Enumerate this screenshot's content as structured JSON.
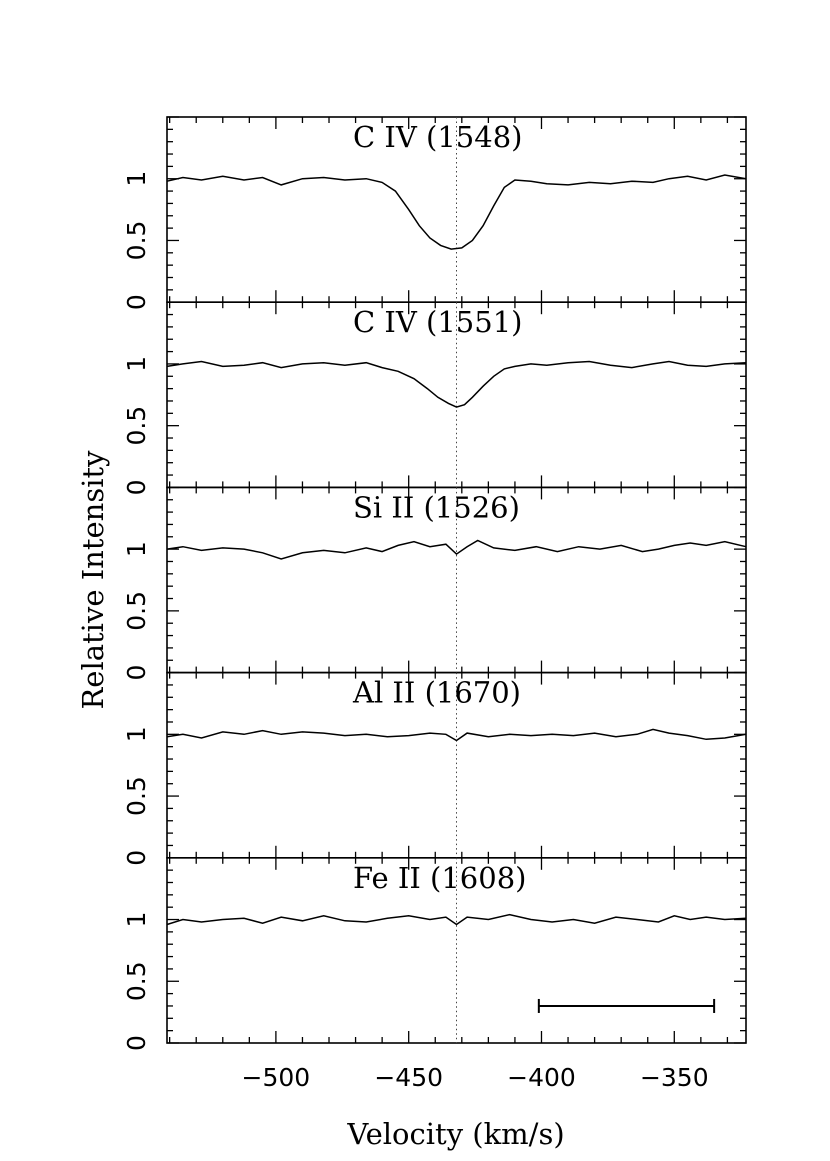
{
  "chart_data": {
    "type": "line",
    "xlabel": "Velocity (km/s)",
    "ylabel": "Relative Intensity",
    "xlim": [
      -541,
      -323
    ],
    "x_ticks": [
      -500,
      -450,
      -400,
      -350
    ],
    "x_tick_labels": [
      "−500",
      "−450",
      "−400",
      "−350"
    ],
    "x_minor_step": 10,
    "ylim": [
      0,
      1.5
    ],
    "y_ticks": [
      0,
      0.5,
      1
    ],
    "y_tick_labels": [
      "0",
      "0.5",
      "1"
    ],
    "y_minor_step": 0.1,
    "reference_velocity": -432,
    "scale_bar": {
      "x_start": -401,
      "x_end": -335,
      "y": 0.3
    },
    "panels": [
      {
        "name": "C IV (1548)",
        "profile": [
          [
            -541,
            0.98
          ],
          [
            -535,
            1.01
          ],
          [
            -528,
            0.99
          ],
          [
            -520,
            1.02
          ],
          [
            -512,
            0.99
          ],
          [
            -505,
            1.01
          ],
          [
            -498,
            0.95
          ],
          [
            -490,
            1.0
          ],
          [
            -482,
            1.01
          ],
          [
            -474,
            0.99
          ],
          [
            -466,
            1.0
          ],
          [
            -460,
            0.97
          ],
          [
            -455,
            0.9
          ],
          [
            -450,
            0.75
          ],
          [
            -446,
            0.62
          ],
          [
            -442,
            0.52
          ],
          [
            -438,
            0.46
          ],
          [
            -434,
            0.43
          ],
          [
            -430,
            0.44
          ],
          [
            -426,
            0.5
          ],
          [
            -422,
            0.62
          ],
          [
            -418,
            0.78
          ],
          [
            -414,
            0.93
          ],
          [
            -410,
            0.99
          ],
          [
            -404,
            0.98
          ],
          [
            -398,
            0.96
          ],
          [
            -390,
            0.95
          ],
          [
            -382,
            0.97
          ],
          [
            -374,
            0.96
          ],
          [
            -366,
            0.98
          ],
          [
            -358,
            0.97
          ],
          [
            -352,
            1.0
          ],
          [
            -345,
            1.02
          ],
          [
            -338,
            0.99
          ],
          [
            -331,
            1.03
          ],
          [
            -323,
            1.0
          ]
        ]
      },
      {
        "name": "C IV (1551)",
        "profile": [
          [
            -541,
            0.98
          ],
          [
            -535,
            1.0
          ],
          [
            -528,
            1.02
          ],
          [
            -520,
            0.98
          ],
          [
            -512,
            0.99
          ],
          [
            -505,
            1.01
          ],
          [
            -498,
            0.97
          ],
          [
            -490,
            1.0
          ],
          [
            -482,
            1.01
          ],
          [
            -474,
            0.99
          ],
          [
            -466,
            1.01
          ],
          [
            -460,
            0.97
          ],
          [
            -454,
            0.94
          ],
          [
            -448,
            0.88
          ],
          [
            -443,
            0.8
          ],
          [
            -439,
            0.73
          ],
          [
            -435,
            0.68
          ],
          [
            -432,
            0.65
          ],
          [
            -429,
            0.67
          ],
          [
            -426,
            0.73
          ],
          [
            -422,
            0.82
          ],
          [
            -418,
            0.9
          ],
          [
            -414,
            0.96
          ],
          [
            -410,
            0.98
          ],
          [
            -404,
            1.0
          ],
          [
            -398,
            0.99
          ],
          [
            -390,
            1.01
          ],
          [
            -382,
            1.02
          ],
          [
            -374,
            0.99
          ],
          [
            -366,
            0.97
          ],
          [
            -358,
            1.0
          ],
          [
            -352,
            1.02
          ],
          [
            -345,
            0.99
          ],
          [
            -338,
            0.98
          ],
          [
            -331,
            1.0
          ],
          [
            -323,
            1.01
          ]
        ]
      },
      {
        "name": "Si II (1526)",
        "profile": [
          [
            -541,
            1.0
          ],
          [
            -535,
            1.02
          ],
          [
            -528,
            0.99
          ],
          [
            -520,
            1.01
          ],
          [
            -512,
            1.0
          ],
          [
            -505,
            0.97
          ],
          [
            -498,
            0.92
          ],
          [
            -490,
            0.97
          ],
          [
            -482,
            0.99
          ],
          [
            -474,
            0.97
          ],
          [
            -466,
            1.01
          ],
          [
            -460,
            0.98
          ],
          [
            -454,
            1.03
          ],
          [
            -448,
            1.06
          ],
          [
            -442,
            1.02
          ],
          [
            -436,
            1.04
          ],
          [
            -432,
            0.96
          ],
          [
            -428,
            1.02
          ],
          [
            -424,
            1.07
          ],
          [
            -418,
            1.01
          ],
          [
            -410,
            0.99
          ],
          [
            -402,
            1.02
          ],
          [
            -394,
            0.98
          ],
          [
            -386,
            1.02
          ],
          [
            -378,
            1.0
          ],
          [
            -370,
            1.03
          ],
          [
            -362,
            0.98
          ],
          [
            -356,
            1.0
          ],
          [
            -350,
            1.03
          ],
          [
            -344,
            1.05
          ],
          [
            -338,
            1.03
          ],
          [
            -331,
            1.06
          ],
          [
            -323,
            1.02
          ]
        ]
      },
      {
        "name": "Al II (1670)",
        "profile": [
          [
            -541,
            0.98
          ],
          [
            -535,
            1.0
          ],
          [
            -528,
            0.97
          ],
          [
            -520,
            1.02
          ],
          [
            -512,
            1.0
          ],
          [
            -505,
            1.03
          ],
          [
            -498,
            1.0
          ],
          [
            -490,
            1.02
          ],
          [
            -482,
            1.01
          ],
          [
            -474,
            0.99
          ],
          [
            -466,
            1.0
          ],
          [
            -458,
            0.98
          ],
          [
            -450,
            0.99
          ],
          [
            -442,
            1.01
          ],
          [
            -436,
            1.0
          ],
          [
            -432,
            0.95
          ],
          [
            -428,
            1.01
          ],
          [
            -420,
            0.98
          ],
          [
            -412,
            1.0
          ],
          [
            -404,
            0.99
          ],
          [
            -396,
            1.0
          ],
          [
            -388,
            0.99
          ],
          [
            -380,
            1.01
          ],
          [
            -372,
            0.98
          ],
          [
            -364,
            1.0
          ],
          [
            -358,
            1.04
          ],
          [
            -352,
            1.01
          ],
          [
            -345,
            0.99
          ],
          [
            -338,
            0.96
          ],
          [
            -331,
            0.97
          ],
          [
            -323,
            1.0
          ]
        ]
      },
      {
        "name": "Fe II (1608)",
        "profile": [
          [
            -541,
            0.96
          ],
          [
            -535,
            1.0
          ],
          [
            -528,
            0.98
          ],
          [
            -520,
            1.0
          ],
          [
            -512,
            1.01
          ],
          [
            -505,
            0.97
          ],
          [
            -498,
            1.02
          ],
          [
            -490,
            0.99
          ],
          [
            -482,
            1.03
          ],
          [
            -474,
            0.99
          ],
          [
            -466,
            0.98
          ],
          [
            -458,
            1.01
          ],
          [
            -450,
            1.03
          ],
          [
            -442,
            1.0
          ],
          [
            -436,
            1.02
          ],
          [
            -432,
            0.96
          ],
          [
            -428,
            1.02
          ],
          [
            -420,
            1.0
          ],
          [
            -412,
            1.04
          ],
          [
            -404,
            1.0
          ],
          [
            -396,
            0.98
          ],
          [
            -388,
            1.0
          ],
          [
            -380,
            0.97
          ],
          [
            -372,
            1.02
          ],
          [
            -364,
            1.0
          ],
          [
            -356,
            0.98
          ],
          [
            -350,
            1.03
          ],
          [
            -344,
            1.0
          ],
          [
            -338,
            1.02
          ],
          [
            -331,
            1.0
          ],
          [
            -323,
            1.01
          ]
        ]
      }
    ]
  }
}
